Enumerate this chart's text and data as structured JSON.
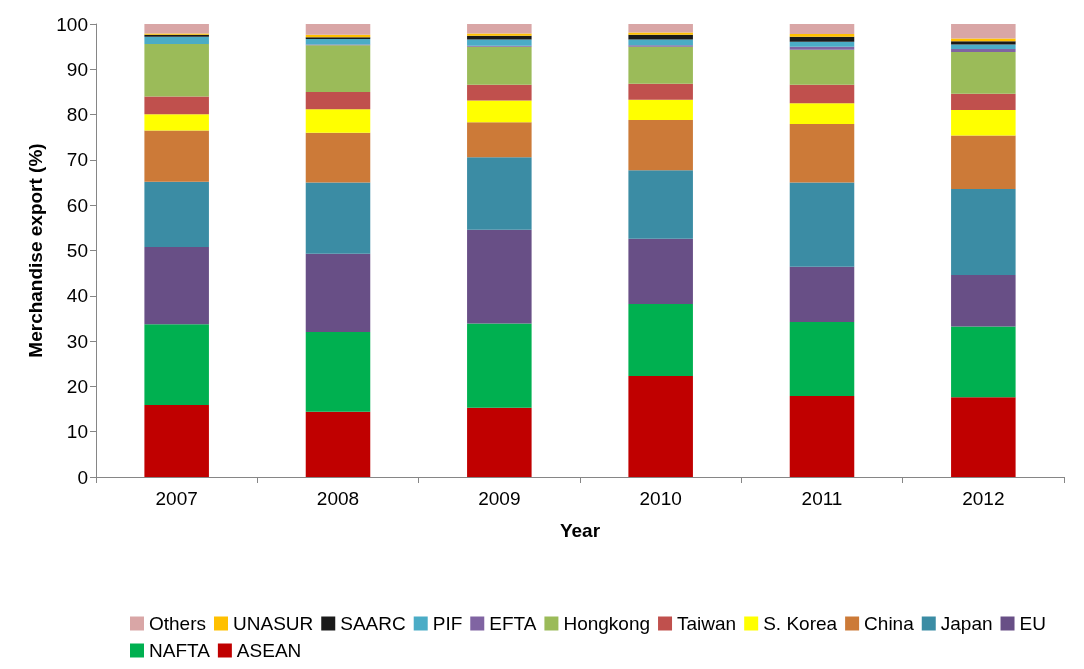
{
  "chart_data": {
    "type": "bar",
    "stacked": true,
    "xlabel": "Year",
    "ylabel": "Merchandise export (%)",
    "categories": [
      "2007",
      "2008",
      "2009",
      "2010",
      "2011",
      "2012"
    ],
    "ylim": [
      0,
      100
    ],
    "yticks": [
      0,
      10,
      20,
      30,
      40,
      50,
      60,
      70,
      80,
      90,
      100
    ],
    "grid": false,
    "legend": "bottom",
    "series": [
      {
        "name": "ASEAN",
        "color": "#c00000",
        "values": [
          15.9,
          14.4,
          15.3,
          22.3,
          17.9,
          17.6
        ]
      },
      {
        "name": "NAFTA",
        "color": "#00b050",
        "values": [
          17.8,
          17.6,
          18.6,
          15.9,
          16.3,
          15.6
        ]
      },
      {
        "name": "EU",
        "color": "#684f86",
        "values": [
          17.1,
          17.3,
          20.7,
          14.4,
          12.2,
          11.4
        ]
      },
      {
        "name": "Japan",
        "color": "#3b8ca4",
        "values": [
          14.4,
          15.7,
          16.0,
          15.1,
          18.6,
          19.0
        ]
      },
      {
        "name": "China",
        "color": "#cc7a38",
        "values": [
          11.3,
          11.0,
          7.7,
          11.1,
          12.9,
          11.8
        ]
      },
      {
        "name": "S. Korea",
        "color": "#ffff00",
        "values": [
          3.6,
          5.2,
          4.8,
          4.5,
          4.6,
          5.6
        ]
      },
      {
        "name": "Taiwan",
        "color": "#c0504d",
        "values": [
          3.9,
          3.8,
          3.5,
          3.5,
          4.1,
          3.6
        ]
      },
      {
        "name": "Hongkong",
        "color": "#9bbb59",
        "values": [
          11.6,
          10.3,
          8.4,
          8.2,
          7.7,
          9.2
        ]
      },
      {
        "name": "EFTA",
        "color": "#8064a2",
        "values": [
          0,
          0.2,
          0.2,
          0.3,
          0.7,
          0.7
        ]
      },
      {
        "name": "PIF",
        "color": "#4bacc6",
        "values": [
          1.6,
          1.2,
          1.4,
          1.3,
          1.1,
          1.0
        ]
      },
      {
        "name": "SAARC",
        "color": "#1a1a1a",
        "values": [
          0.4,
          0.4,
          0.8,
          1.0,
          1.1,
          0.7
        ]
      },
      {
        "name": "UNASUR",
        "color": "#ffc000",
        "values": [
          0.3,
          0.5,
          0.5,
          0.5,
          0.6,
          0.6
        ]
      },
      {
        "name": "Others",
        "color": "#d9a6a6",
        "values": [
          2.1,
          2.4,
          2.1,
          1.9,
          2.2,
          3.2
        ]
      }
    ]
  }
}
